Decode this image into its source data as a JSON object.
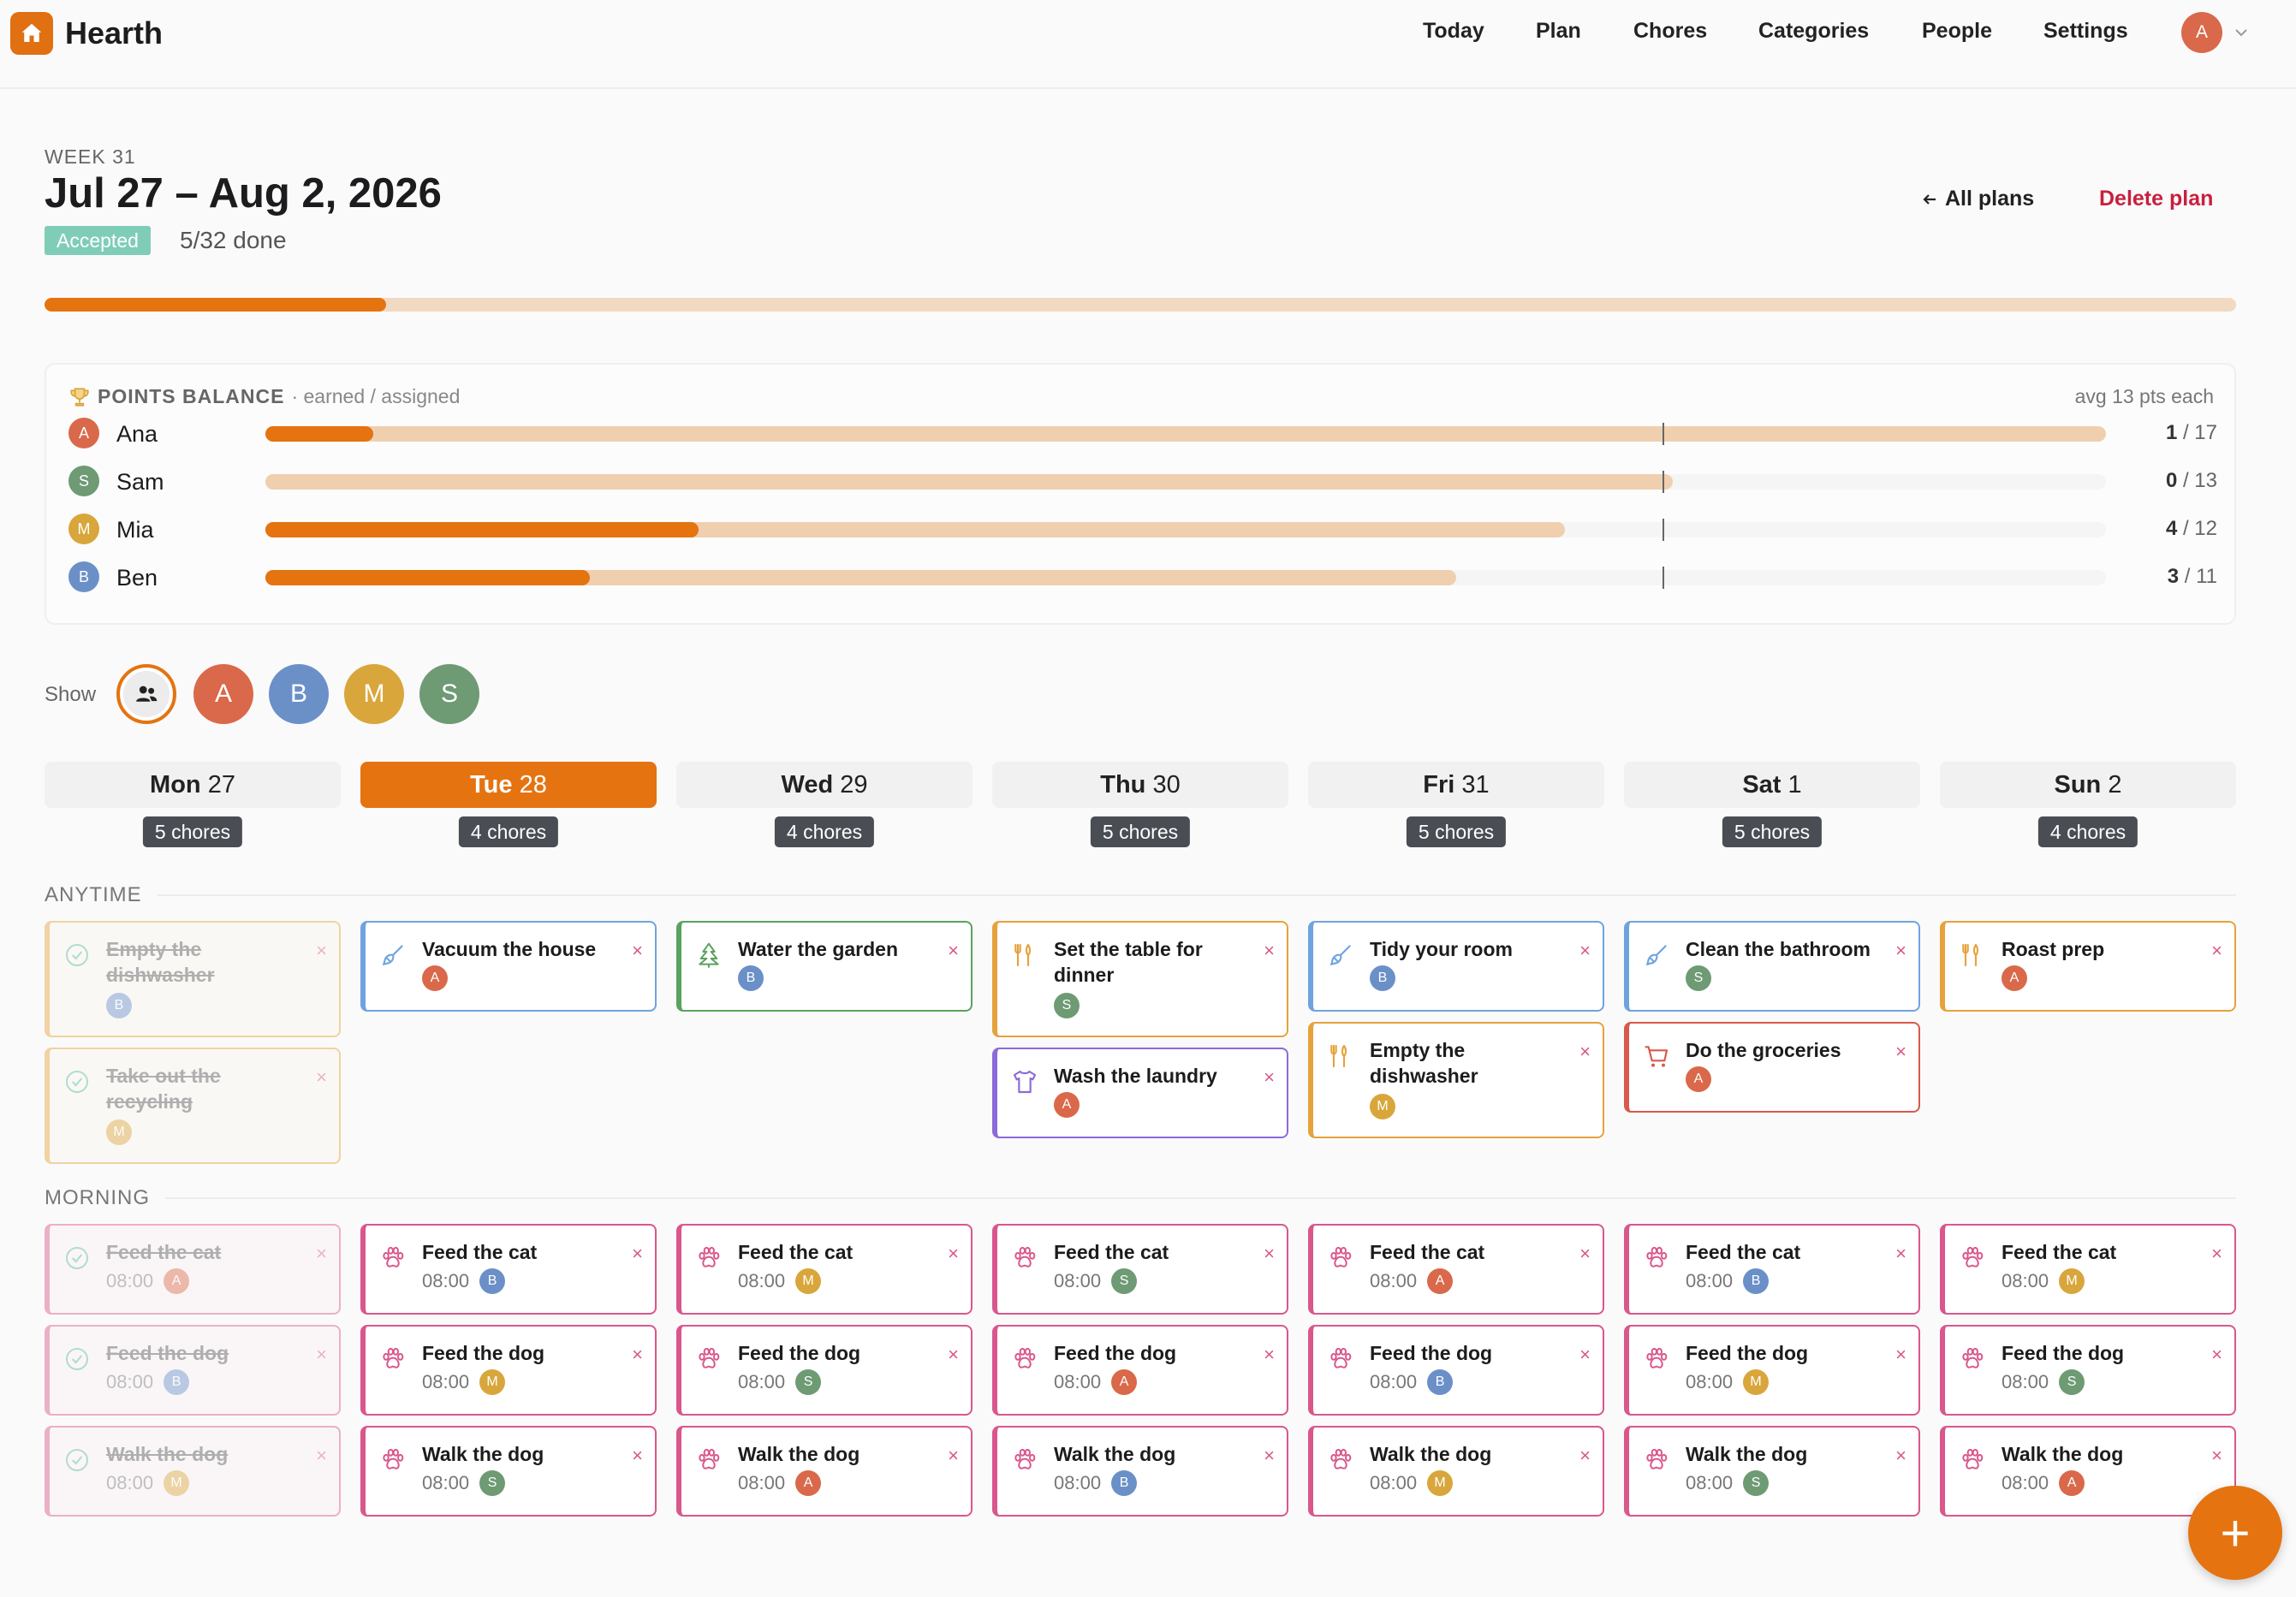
{
  "app": {
    "title": "Hearth"
  },
  "nav": {
    "items": [
      "Today",
      "Plan",
      "Chores",
      "Categories",
      "People",
      "Settings"
    ],
    "user_initial": "A"
  },
  "plan": {
    "week_label": "WEEK 31",
    "title": "Jul 27 – Aug 2, 2026",
    "status": "Accepted",
    "done_text": "5/32 done",
    "progress_fraction": 0.156,
    "all_plans": "All plans",
    "delete_plan": "Delete plan"
  },
  "points": {
    "title": "POINTS BALANCE",
    "subtitle": "· earned / assigned",
    "avg": "avg 13 pts each",
    "max": 17,
    "people": [
      {
        "name": "Ana",
        "initial": "A",
        "color": "#d9694a",
        "earned": 1,
        "assigned": 17,
        "earned_label": "1",
        "assigned_label": "/ 17"
      },
      {
        "name": "Sam",
        "initial": "S",
        "color": "#6e9a74",
        "earned": 0,
        "assigned": 13,
        "earned_label": "0",
        "assigned_label": "/ 13"
      },
      {
        "name": "Mia",
        "initial": "M",
        "color": "#d9a63c",
        "earned": 4,
        "assigned": 12,
        "earned_label": "4",
        "assigned_label": "/ 12"
      },
      {
        "name": "Ben",
        "initial": "B",
        "color": "#6b90c8",
        "earned": 3,
        "assigned": 11,
        "earned_label": "3",
        "assigned_label": "/ 11"
      }
    ]
  },
  "filter": {
    "label": "Show",
    "options": [
      {
        "initial": "A",
        "color": "#d9694a"
      },
      {
        "initial": "B",
        "color": "#6b90c8"
      },
      {
        "initial": "M",
        "color": "#d9a63c"
      },
      {
        "initial": "S",
        "color": "#6e9a74"
      }
    ]
  },
  "days": [
    {
      "dow": "Mon",
      "num": "27",
      "count": "5 chores",
      "today": false
    },
    {
      "dow": "Tue",
      "num": "28",
      "count": "4 chores",
      "today": true
    },
    {
      "dow": "Wed",
      "num": "29",
      "count": "4 chores",
      "today": false
    },
    {
      "dow": "Thu",
      "num": "30",
      "count": "5 chores",
      "today": false
    },
    {
      "dow": "Fri",
      "num": "31",
      "count": "5 chores",
      "today": false
    },
    {
      "dow": "Sat",
      "num": "1",
      "count": "5 chores",
      "today": false
    },
    {
      "dow": "Sun",
      "num": "2",
      "count": "4 chores",
      "today": false
    }
  ],
  "people_colors": {
    "A": "#d9694a",
    "B": "#6b90c8",
    "M": "#d9a63c",
    "S": "#6e9a74"
  },
  "categories": {
    "kitchen": {
      "color": "#e6a23c",
      "icon": "utensils-icon"
    },
    "cleaning": {
      "color": "#6fa3df",
      "icon": "broom-icon"
    },
    "garden": {
      "color": "#5aa25e",
      "icon": "tree-icon"
    },
    "laundry": {
      "color": "#8b6ad9",
      "icon": "shirt-icon"
    },
    "shopping": {
      "color": "#d9594a",
      "icon": "cart-icon"
    },
    "pets": {
      "color": "#d9578c",
      "icon": "paw-icon"
    }
  },
  "sections": {
    "anytime": {
      "label": "ANYTIME",
      "columns": [
        [
          {
            "title": "Empty the dishwasher",
            "cat": "kitchen",
            "person": "B",
            "done": true
          },
          {
            "title": "Take out the recycling",
            "cat": "kitchen",
            "person": "M",
            "done": true
          }
        ],
        [
          {
            "title": "Vacuum the house",
            "cat": "cleaning",
            "person": "A",
            "done": false
          }
        ],
        [
          {
            "title": "Water the garden",
            "cat": "garden",
            "person": "B",
            "done": false
          }
        ],
        [
          {
            "title": "Set the table for dinner",
            "cat": "kitchen",
            "person": "S",
            "done": false
          },
          {
            "title": "Wash the laundry",
            "cat": "laundry",
            "person": "A",
            "done": false
          }
        ],
        [
          {
            "title": "Tidy your room",
            "cat": "cleaning",
            "person": "B",
            "done": false
          },
          {
            "title": "Empty the dishwasher",
            "cat": "kitchen",
            "person": "M",
            "done": false
          }
        ],
        [
          {
            "title": "Clean the bathroom",
            "cat": "cleaning",
            "person": "S",
            "done": false
          },
          {
            "title": "Do the groceries",
            "cat": "shopping",
            "person": "A",
            "done": false
          }
        ],
        [
          {
            "title": "Roast prep",
            "cat": "kitchen",
            "person": "A",
            "done": false
          }
        ]
      ]
    },
    "morning": {
      "label": "MORNING",
      "columns": [
        [
          {
            "title": "Feed the cat",
            "time": "08:00",
            "cat": "pets",
            "person": "A",
            "done": true
          },
          {
            "title": "Feed the dog",
            "time": "08:00",
            "cat": "pets",
            "person": "B",
            "done": true
          },
          {
            "title": "Walk the dog",
            "time": "08:00",
            "cat": "pets",
            "person": "M",
            "done": true
          }
        ],
        [
          {
            "title": "Feed the cat",
            "time": "08:00",
            "cat": "pets",
            "person": "B",
            "done": false
          },
          {
            "title": "Feed the dog",
            "time": "08:00",
            "cat": "pets",
            "person": "M",
            "done": false
          },
          {
            "title": "Walk the dog",
            "time": "08:00",
            "cat": "pets",
            "person": "S",
            "done": false
          }
        ],
        [
          {
            "title": "Feed the cat",
            "time": "08:00",
            "cat": "pets",
            "person": "M",
            "done": false
          },
          {
            "title": "Feed the dog",
            "time": "08:00",
            "cat": "pets",
            "person": "S",
            "done": false
          },
          {
            "title": "Walk the dog",
            "time": "08:00",
            "cat": "pets",
            "person": "A",
            "done": false
          }
        ],
        [
          {
            "title": "Feed the cat",
            "time": "08:00",
            "cat": "pets",
            "person": "S",
            "done": false
          },
          {
            "title": "Feed the dog",
            "time": "08:00",
            "cat": "pets",
            "person": "A",
            "done": false
          },
          {
            "title": "Walk the dog",
            "time": "08:00",
            "cat": "pets",
            "person": "B",
            "done": false
          }
        ],
        [
          {
            "title": "Feed the cat",
            "time": "08:00",
            "cat": "pets",
            "person": "A",
            "done": false
          },
          {
            "title": "Feed the dog",
            "time": "08:00",
            "cat": "pets",
            "person": "B",
            "done": false
          },
          {
            "title": "Walk the dog",
            "time": "08:00",
            "cat": "pets",
            "person": "M",
            "done": false
          }
        ],
        [
          {
            "title": "Feed the cat",
            "time": "08:00",
            "cat": "pets",
            "person": "B",
            "done": false
          },
          {
            "title": "Feed the dog",
            "time": "08:00",
            "cat": "pets",
            "person": "M",
            "done": false
          },
          {
            "title": "Walk the dog",
            "time": "08:00",
            "cat": "pets",
            "person": "S",
            "done": false
          }
        ],
        [
          {
            "title": "Feed the cat",
            "time": "08:00",
            "cat": "pets",
            "person": "M",
            "done": false
          },
          {
            "title": "Feed the dog",
            "time": "08:00",
            "cat": "pets",
            "person": "S",
            "done": false
          },
          {
            "title": "Walk the dog",
            "time": "08:00",
            "cat": "pets",
            "person": "A",
            "done": false
          }
        ]
      ]
    }
  },
  "fab": {
    "label": "+"
  }
}
